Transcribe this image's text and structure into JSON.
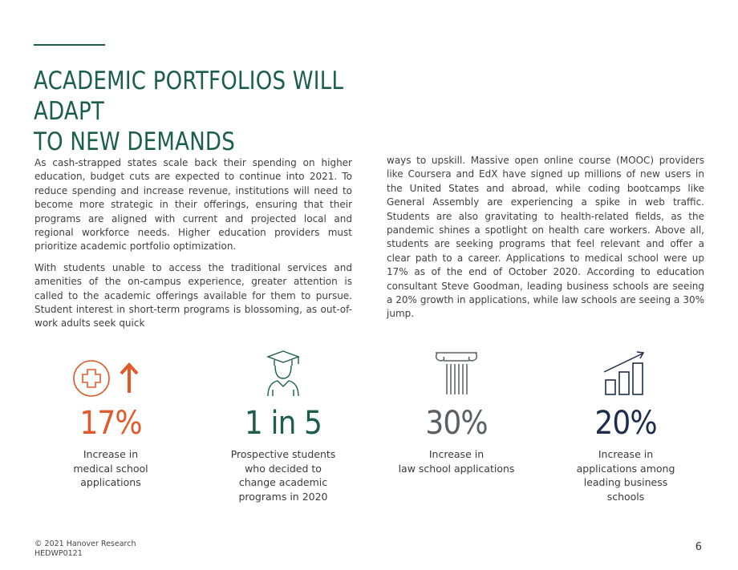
{
  "header": {
    "title_line1": "ACADEMIC PORTFOLIOS WILL ADAPT",
    "title_line2": "TO NEW DEMANDS"
  },
  "body": {
    "left_paragraphs": [
      "As cash-strapped states scale back their spending on higher education, budget cuts are expected to continue into 2021. To reduce spending and increase revenue, institutions will need to become more strategic in their offerings, ensuring that their programs are aligned with current and projected local and regional workforce needs. Higher education providers must prioritize academic portfolio optimization.",
      "With students unable to access the traditional services and amenities of the on-campus experience, greater attention is called to the academic offerings available for them to pursue. Student interest in short-term programs is blossoming, as out-of-work adults seek quick"
    ],
    "right_paragraphs": [
      "ways to upskill. Massive open online course (MOOC) providers like Coursera and EdX have signed up millions of new users in the United States and abroad, while coding bootcamps like General Assembly are experiencing a spike in web traffic. Students are also gravitating to health-related fields, as the pandemic shines a spotlight on health care workers. Above all, students are seeking programs that feel relevant and offer a clear path to a career. Applications to medical school were up 17% as of the end of October 2020. According to education consultant Steve Goodman, leading business schools are seeing a 20% growth in applications, while law schools are seeing a 30% jump."
    ]
  },
  "stats": [
    {
      "icon": "medical-cross-arrow-up-icon",
      "value": "17%",
      "color": "#e05a2b",
      "description": "Increase in\nmedical school\napplications"
    },
    {
      "icon": "graduate-icon",
      "value": "1 in 5",
      "color": "#1b5e4a",
      "description": "Prospective students\nwho decided to\nchange academic\nprograms in 2020"
    },
    {
      "icon": "column-pillar-icon",
      "value": "30%",
      "color": "#5b5f63",
      "description": "Increase in\nlaw school applications"
    },
    {
      "icon": "bar-growth-icon",
      "value": "20%",
      "color": "#1f2d4d",
      "description": "Increase in\napplications among\nleading business\nschools"
    }
  ],
  "footer": {
    "copyright": "© 2021 Hanover Research",
    "code": "HEDWP0121",
    "page_number": "6"
  }
}
